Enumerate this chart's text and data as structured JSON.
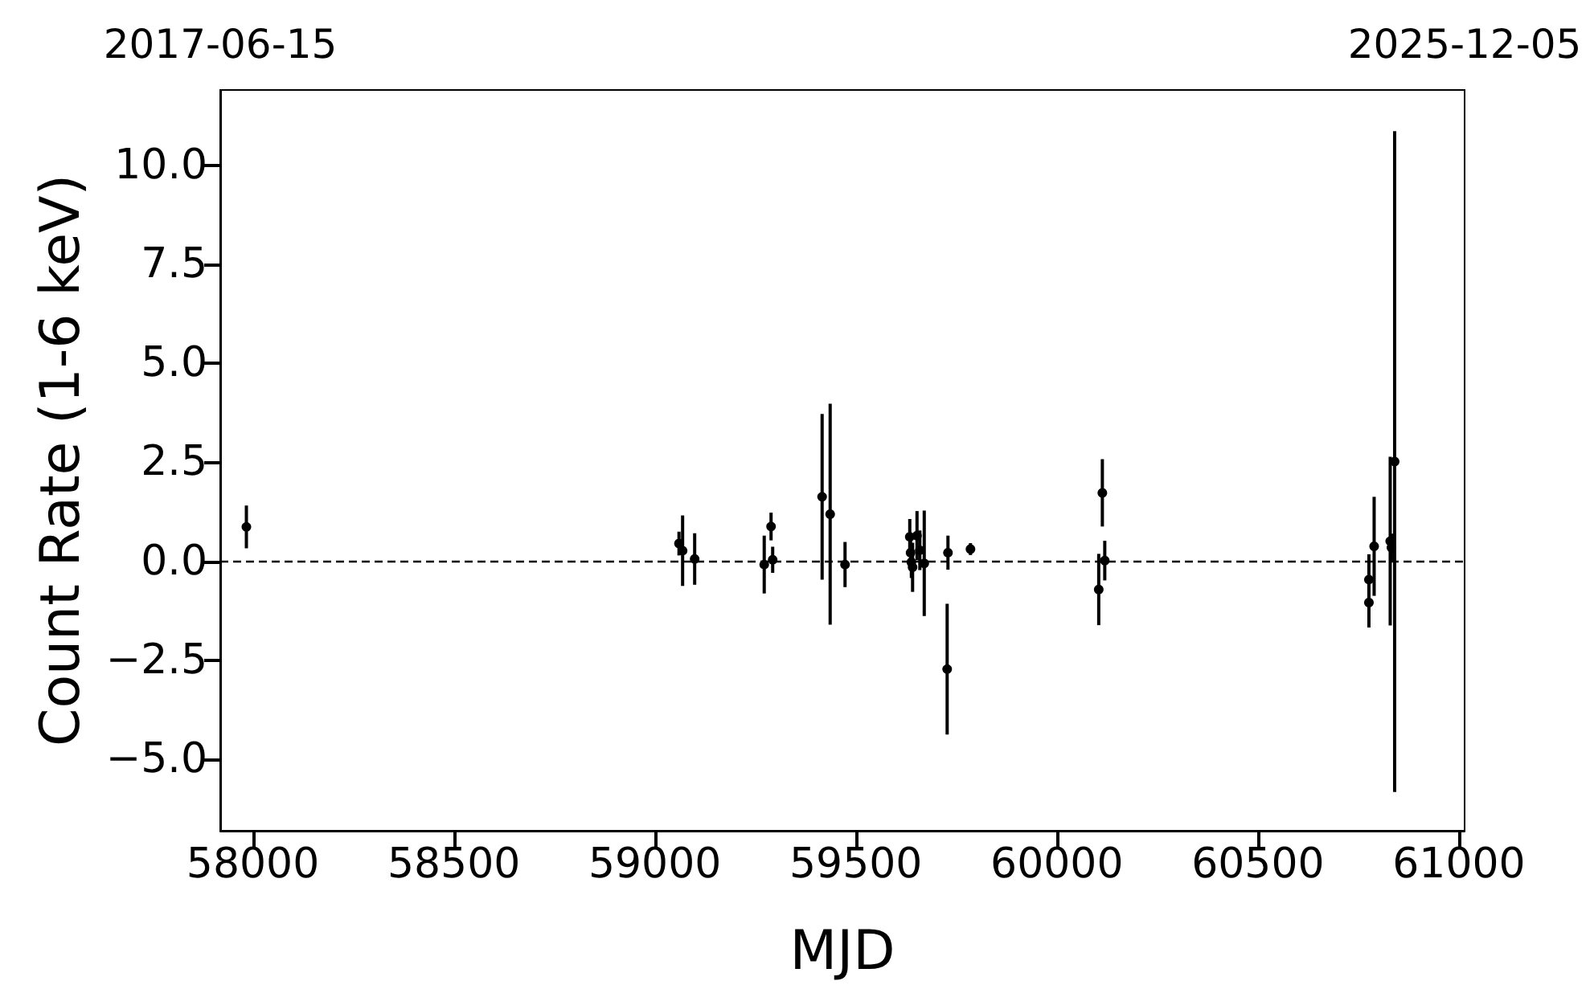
{
  "chart_data": {
    "type": "scatter",
    "xlabel": "MJD",
    "ylabel": "Count Rate (1-6 keV)",
    "x": [
      57984,
      59060,
      59069,
      59099,
      59272,
      59289,
      59293,
      59416,
      59436,
      59473,
      59634,
      59636,
      59638,
      59641,
      59652,
      59659,
      59670,
      59729,
      59727,
      59785,
      60104,
      60113,
      60119,
      60776,
      60776,
      60789,
      60829,
      60832,
      60840
    ],
    "values": [
      0.87,
      0.45,
      0.27,
      0.06,
      -0.08,
      0.88,
      0.04,
      1.63,
      1.19,
      -0.08,
      0.62,
      0.22,
      -0.02,
      -0.15,
      0.65,
      0.28,
      -0.05,
      0.22,
      -2.72,
      0.31,
      -0.71,
      1.73,
      0.02,
      -0.46,
      -1.04,
      0.38,
      0.51,
      0.35,
      2.52
    ],
    "errors": [
      0.54,
      0.3,
      0.89,
      0.65,
      0.73,
      0.35,
      0.33,
      2.09,
      2.79,
      0.57,
      0.45,
      0.45,
      0.4,
      0.62,
      0.62,
      0.5,
      1.33,
      0.43,
      1.65,
      0.15,
      0.9,
      0.85,
      0.5,
      0.64,
      0.63,
      1.25,
      2.13,
      0.35,
      8.34
    ],
    "color": "#000000",
    "marker": "circle",
    "grid": false,
    "xlim": [
      57919,
      61014
    ],
    "xticks": [
      58000,
      58500,
      59000,
      59500,
      60000,
      60500,
      61000
    ],
    "ylim": [
      -6.8,
      11.9
    ],
    "yticks": [
      {
        "value": -5,
        "label": "−5.0"
      },
      {
        "value": -2.5,
        "label": "−2.5"
      },
      {
        "value": 0,
        "label": "0.0"
      },
      2.5,
      {
        "value": 5,
        "label": "5.0"
      },
      7.5,
      {
        "value": 10,
        "label": "10.0"
      }
    ],
    "x2lim": [
      "2017-06-15",
      "2025-12-05"
    ],
    "x2ticks": [
      "2017-06-15",
      "2025-12-05"
    ],
    "ref_lines": [
      {
        "axis": "y",
        "value": 0,
        "color": "#000000",
        "line_style": "dashed"
      }
    ]
  }
}
